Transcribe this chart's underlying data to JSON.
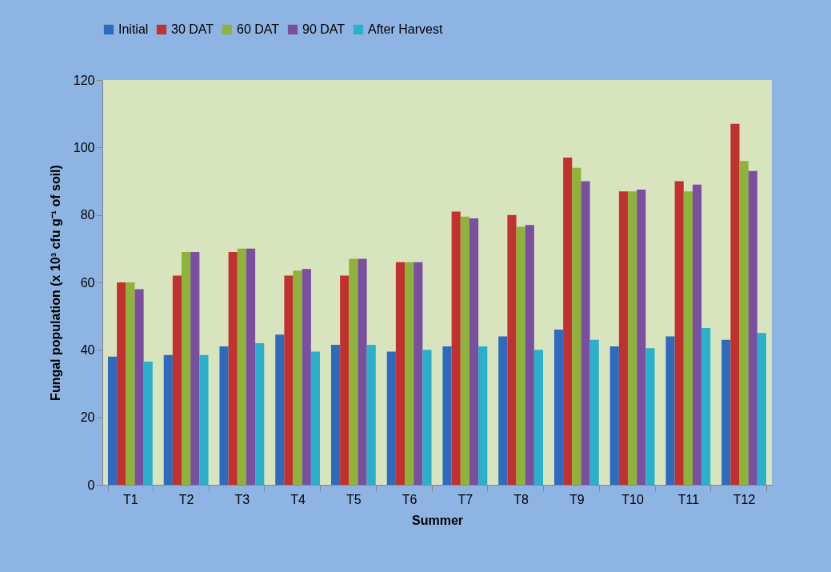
{
  "chart_data": {
    "type": "bar",
    "xlabel": "Summer",
    "ylabel": "Fungal population (x 10³ cfu g⁻¹  of soil)",
    "categories": [
      "T1",
      "T2",
      "T3",
      "T4",
      "T5",
      "T6",
      "T7",
      "T8",
      "T9",
      "T10",
      "T11",
      "T12"
    ],
    "series": [
      {
        "name": "Initial",
        "color": "#2e6bbf",
        "values": [
          38,
          38.5,
          41,
          44.5,
          41.5,
          39.5,
          41,
          44,
          46,
          41,
          44,
          43
        ]
      },
      {
        "name": "30 DAT",
        "color": "#c0312f",
        "values": [
          60,
          62,
          69,
          62,
          62,
          66,
          81,
          80,
          97,
          87,
          90,
          107
        ]
      },
      {
        "name": "60 DAT",
        "color": "#8db33a",
        "values": [
          60,
          69,
          70,
          63.5,
          67,
          66,
          79.5,
          76.5,
          94,
          87,
          87,
          96
        ]
      },
      {
        "name": "90 DAT",
        "color": "#7a4fa0",
        "values": [
          58,
          69,
          70,
          64,
          67,
          66,
          79,
          77,
          90,
          87.5,
          89,
          93
        ]
      },
      {
        "name": "After Harvest",
        "color": "#2bb0cc",
        "values": [
          36.5,
          38.5,
          42,
          39.5,
          41.5,
          40,
          41,
          40,
          43,
          40.5,
          46.5,
          45
        ]
      }
    ],
    "ylim": [
      0,
      120
    ],
    "yticks": [
      0,
      20,
      40,
      60,
      80,
      100,
      120
    ],
    "grid": false,
    "legend": "top"
  }
}
